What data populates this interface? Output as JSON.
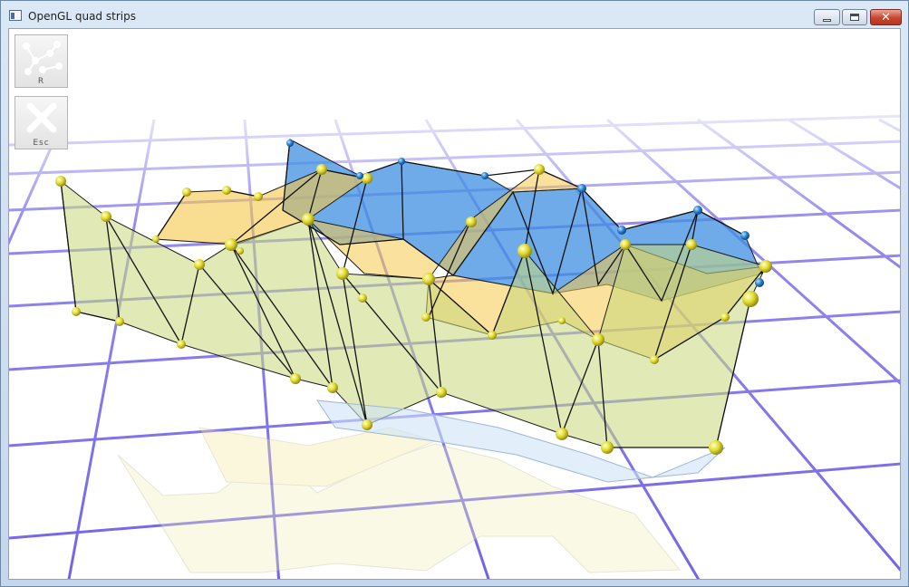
{
  "window": {
    "title": "OpenGL quad strips",
    "controls": {
      "minimize": "minimize",
      "maximize": "maximize",
      "close": "✕"
    }
  },
  "toolbar": {
    "reset_button": {
      "label": "R",
      "icon": "random-points-icon"
    },
    "escape_button": {
      "label": "Esc",
      "icon": "close-x-icon"
    }
  },
  "scene": {
    "floor_grid_color": "#5a49e6",
    "strip_colors": {
      "green": "#c9d97a",
      "orange": "#f5c84a",
      "blue": "#3f8fe0"
    },
    "node_colors": {
      "yellow": "#e9e23b",
      "blue": "#1a6fc2"
    }
  }
}
